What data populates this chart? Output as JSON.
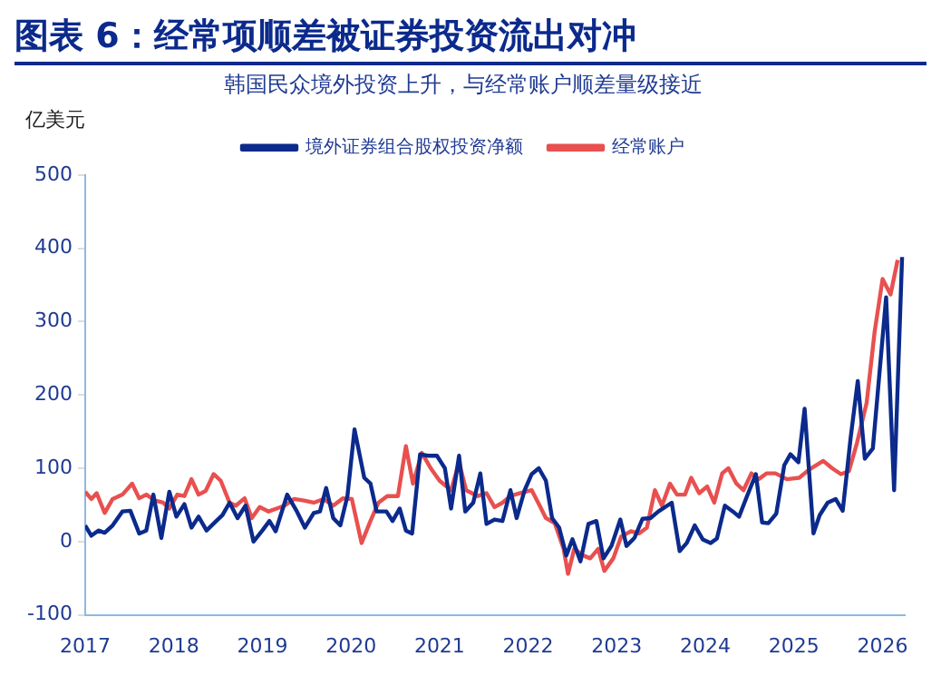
{
  "chart_data": {
    "type": "line",
    "title": "图表 6：经常项顺差被证券投资流出对冲",
    "subtitle": "韩国民众境外投资上升，与经常账户顺差量级接近",
    "ylabel": "亿美元",
    "xlim": [
      2017,
      2026.25
    ],
    "xticks": [
      2017,
      2018,
      2019,
      2020,
      2021,
      2022,
      2023,
      2024,
      2025,
      2026
    ],
    "ylim": [
      -100,
      500
    ],
    "yticks": [
      -100,
      0,
      100,
      200,
      300,
      400,
      500
    ],
    "grid": false,
    "legend": "top",
    "marker": "none",
    "line_style": "solid",
    "series": [
      {
        "name": "境外证券组合股权投资净额",
        "color": "#0b2a8c",
        "x": [
          2017.0,
          2017.07,
          2017.15,
          2017.22,
          2017.31,
          2017.42,
          2017.51,
          2017.61,
          2017.69,
          2017.77,
          2017.86,
          2017.95,
          2018.03,
          2018.12,
          2018.2,
          2018.28,
          2018.37,
          2018.48,
          2018.55,
          2018.63,
          2018.72,
          2018.81,
          2018.9,
          2019.0,
          2019.08,
          2019.15,
          2019.28,
          2019.39,
          2019.48,
          2019.58,
          2019.65,
          2019.72,
          2019.8,
          2019.88,
          2019.96,
          2020.04,
          2020.15,
          2020.22,
          2020.29,
          2020.4,
          2020.47,
          2020.55,
          2020.62,
          2020.69,
          2020.78,
          2020.87,
          2020.97,
          2021.06,
          2021.13,
          2021.22,
          2021.29,
          2021.38,
          2021.46,
          2021.53,
          2021.62,
          2021.71,
          2021.8,
          2021.87,
          2021.96,
          2022.04,
          2022.12,
          2022.2,
          2022.27,
          2022.35,
          2022.43,
          2022.5,
          2022.59,
          2022.68,
          2022.77,
          2022.85,
          2022.94,
          2023.04,
          2023.11,
          2023.2,
          2023.29,
          2023.38,
          2023.47,
          2023.62,
          2023.71,
          2023.79,
          2023.88,
          2023.97,
          2024.06,
          2024.13,
          2024.22,
          2024.31,
          2024.38,
          2024.47,
          2024.57,
          2024.64,
          2024.71,
          2024.8,
          2024.89,
          2024.96,
          2025.05,
          2025.12,
          2025.22,
          2025.29,
          2025.38,
          2025.47,
          2025.55,
          2025.64,
          2025.72,
          2025.8,
          2025.89,
          2026.04,
          2026.13,
          2026.22
        ],
        "values": [
          22,
          8,
          15,
          12,
          22,
          41,
          42,
          11,
          15,
          64,
          5,
          68,
          34,
          51,
          19,
          34,
          15,
          28,
          36,
          53,
          32,
          49,
          0,
          15,
          28,
          14,
          64,
          41,
          19,
          39,
          41,
          73,
          32,
          22,
          62,
          153,
          87,
          79,
          41,
          41,
          28,
          45,
          15,
          11,
          119,
          117,
          117,
          100,
          45,
          117,
          41,
          53,
          93,
          24,
          30,
          28,
          70,
          32,
          70,
          92,
          100,
          83,
          32,
          19,
          -19,
          3,
          -27,
          24,
          28,
          -23,
          -6,
          30,
          -6,
          5,
          31,
          32,
          41,
          53,
          -13,
          -2,
          22,
          3,
          -2,
          4,
          49,
          41,
          34,
          62,
          92,
          26,
          25,
          38,
          104,
          119,
          108,
          181,
          11,
          36,
          53,
          58,
          42,
          142,
          219,
          113,
          127,
          333,
          70,
          388
        ]
      },
      {
        "name": "经常账户",
        "color": "#e8504f",
        "x": [
          2017.0,
          2017.07,
          2017.13,
          2017.22,
          2017.31,
          2017.42,
          2017.53,
          2017.61,
          2017.69,
          2017.79,
          2017.88,
          2017.95,
          2018.04,
          2018.12,
          2018.2,
          2018.28,
          2018.36,
          2018.45,
          2018.53,
          2018.63,
          2018.7,
          2018.8,
          2018.88,
          2018.97,
          2019.07,
          2019.16,
          2019.25,
          2019.36,
          2019.47,
          2019.58,
          2019.69,
          2019.8,
          2019.91,
          2020.01,
          2020.12,
          2020.22,
          2020.31,
          2020.41,
          2020.53,
          2020.62,
          2020.7,
          2020.8,
          2020.9,
          2021.0,
          2021.13,
          2021.22,
          2021.3,
          2021.43,
          2021.53,
          2021.62,
          2021.71,
          2021.8,
          2021.91,
          2022.04,
          2022.13,
          2022.2,
          2022.3,
          2022.4,
          2022.45,
          2022.52,
          2022.62,
          2022.7,
          2022.79,
          2022.86,
          2022.96,
          2023.05,
          2023.16,
          2023.25,
          2023.34,
          2023.43,
          2023.51,
          2023.6,
          2023.68,
          2023.77,
          2023.84,
          2023.93,
          2024.02,
          2024.1,
          2024.19,
          2024.26,
          2024.35,
          2024.43,
          2024.52,
          2024.6,
          2024.69,
          2024.79,
          2024.92,
          2025.06,
          2025.17,
          2025.33,
          2025.43,
          2025.53,
          2025.62,
          2025.71,
          2025.82,
          2025.91,
          2026.0,
          2026.09,
          2026.17
        ],
        "values": [
          68,
          58,
          66,
          39,
          58,
          64,
          79,
          59,
          64,
          56,
          53,
          45,
          64,
          62,
          85,
          64,
          69,
          92,
          83,
          53,
          49,
          59,
          32,
          47,
          41,
          45,
          49,
          58,
          56,
          53,
          58,
          49,
          59,
          58,
          -2,
          28,
          53,
          62,
          62,
          130,
          79,
          121,
          100,
          83,
          70,
          108,
          70,
          62,
          66,
          47,
          53,
          62,
          66,
          70,
          49,
          32,
          25,
          -10,
          -44,
          -10,
          -19,
          -23,
          -10,
          -40,
          -23,
          7,
          14,
          11,
          19,
          70,
          49,
          79,
          64,
          64,
          87,
          66,
          75,
          53,
          93,
          100,
          79,
          70,
          93,
          85,
          93,
          93,
          85,
          87,
          98,
          110,
          100,
          92,
          96,
          134,
          189,
          286,
          358,
          337,
          384
        ]
      }
    ]
  }
}
